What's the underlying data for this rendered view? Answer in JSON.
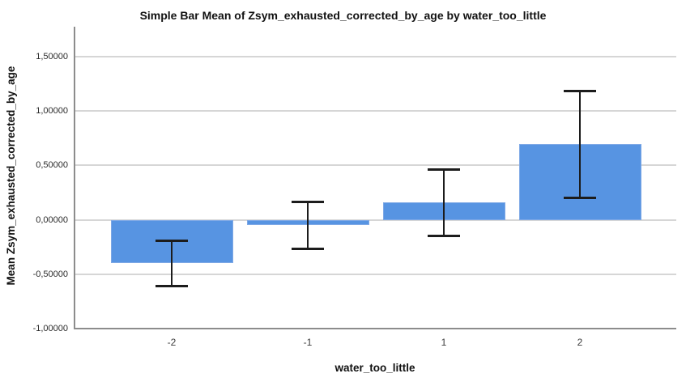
{
  "chart_data": {
    "type": "bar",
    "title": "Simple Bar Mean of Zsym_exhausted_corrected_by_age by water_too_little",
    "xlabel": "water_too_little",
    "ylabel": "Mean Zsym_exhausted_corrected_by_age",
    "categories": [
      "-2",
      "-1",
      "1",
      "2"
    ],
    "series": [
      {
        "name": "Mean Zsym_exhausted_corrected_by_age",
        "values": [
          -0.4,
          -0.05,
          0.16,
          0.7
        ],
        "error_low": [
          -0.61,
          -0.27,
          -0.15,
          0.2
        ],
        "error_high": [
          -0.19,
          0.17,
          0.47,
          1.19
        ]
      }
    ],
    "yticks": [
      {
        "label": "1,50000",
        "value": 1.5
      },
      {
        "label": "1,00000",
        "value": 1.0
      },
      {
        "label": "0,50000",
        "value": 0.5
      },
      {
        "label": "0,00000",
        "value": 0.0
      },
      {
        "label": "-0,50000",
        "value": -0.5
      },
      {
        "label": "-1,00000",
        "value": -1.0
      }
    ],
    "ylim": [
      -1.007,
      1.776
    ],
    "grid": "horizontal",
    "legend": "none",
    "decimal_separator": ",",
    "colors": {
      "bar_fill": "#5794e2",
      "bar_border": "#7fa9e6",
      "gridline": "#d6d6d6",
      "axis_line": "#8c8c8c",
      "error_bar": "#1c1c1c",
      "background": "#ffffff",
      "text": "#111111"
    }
  }
}
